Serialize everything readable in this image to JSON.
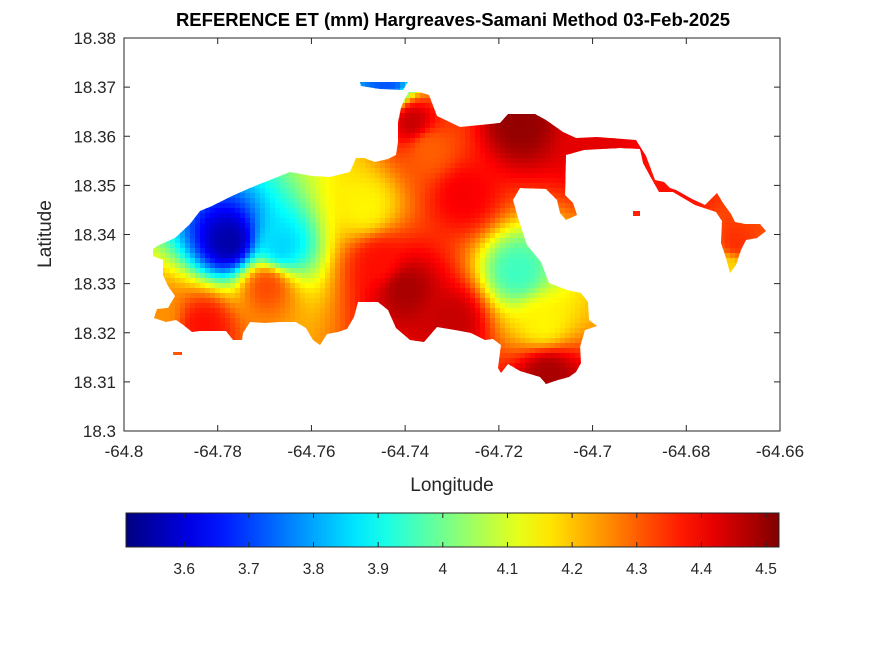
{
  "chart_data": {
    "type": "heatmap",
    "title": "REFERENCE ET (mm) Hargreaves-Samani Method  03-Feb-2025",
    "xlabel": "Longitude",
    "ylabel": "Latitude",
    "xlim": [
      -64.8,
      -64.66
    ],
    "ylim": [
      18.3,
      18.38
    ],
    "xticks": [
      -64.8,
      -64.78,
      -64.76,
      -64.74,
      -64.72,
      -64.7,
      -64.68,
      -64.66
    ],
    "xtick_labels": [
      "-64.8",
      "-64.78",
      "-64.76",
      "-64.74",
      "-64.72",
      "-64.7",
      "-64.68",
      "-64.66"
    ],
    "yticks": [
      18.3,
      18.31,
      18.32,
      18.33,
      18.34,
      18.35,
      18.36,
      18.37,
      18.38
    ],
    "ytick_labels": [
      "18.3",
      "18.31",
      "18.32",
      "18.33",
      "18.34",
      "18.35",
      "18.36",
      "18.37",
      "18.38"
    ],
    "colormap": "jet",
    "colorbar": {
      "orientation": "horizontal",
      "placement": "bottom",
      "range": [
        3.51,
        4.52
      ],
      "ticks": [
        3.6,
        3.7,
        3.8,
        3.9,
        4,
        4.1,
        4.2,
        4.3,
        4.4,
        4.5
      ],
      "tick_labels": [
        "3.6",
        "3.7",
        "3.8",
        "3.9",
        "4",
        "4.1",
        "4.2",
        "4.3",
        "4.4",
        "4.5"
      ]
    },
    "grid": false,
    "hotspots": [
      {
        "lon": -64.7775,
        "lat": 18.3385,
        "value": 3.55
      },
      {
        "lon": -64.7665,
        "lat": 18.3375,
        "value": 3.85
      },
      {
        "lon": -64.7695,
        "lat": 18.3295,
        "value": 4.32
      },
      {
        "lon": -64.783,
        "lat": 18.3215,
        "value": 4.38
      },
      {
        "lon": -64.793,
        "lat": 18.3235,
        "value": 4.25
      },
      {
        "lon": -64.7485,
        "lat": 18.3455,
        "value": 4.15
      },
      {
        "lon": -64.7455,
        "lat": 18.3345,
        "value": 4.38
      },
      {
        "lon": -64.74,
        "lat": 18.329,
        "value": 4.48
      },
      {
        "lon": -64.73,
        "lat": 18.3225,
        "value": 4.45
      },
      {
        "lon": -64.7385,
        "lat": 18.363,
        "value": 4.45
      },
      {
        "lon": -64.735,
        "lat": 18.3575,
        "value": 4.3
      },
      {
        "lon": -64.7275,
        "lat": 18.348,
        "value": 4.4
      },
      {
        "lon": -64.7155,
        "lat": 18.3625,
        "value": 4.5
      },
      {
        "lon": -64.716,
        "lat": 18.3325,
        "value": 3.95
      },
      {
        "lon": -64.7105,
        "lat": 18.322,
        "value": 4.15
      },
      {
        "lon": -64.7095,
        "lat": 18.3115,
        "value": 4.48
      },
      {
        "lon": -64.7,
        "lat": 18.359,
        "value": 4.42
      },
      {
        "lon": -64.6825,
        "lat": 18.3475,
        "value": 4.38
      },
      {
        "lon": -64.6695,
        "lat": 18.338,
        "value": 4.35
      },
      {
        "lon": -64.6708,
        "lat": 18.3335,
        "value": 4.18
      },
      {
        "lon": -64.744,
        "lat": 18.3705,
        "value": 3.72
      }
    ],
    "background_value": 4.12
  }
}
